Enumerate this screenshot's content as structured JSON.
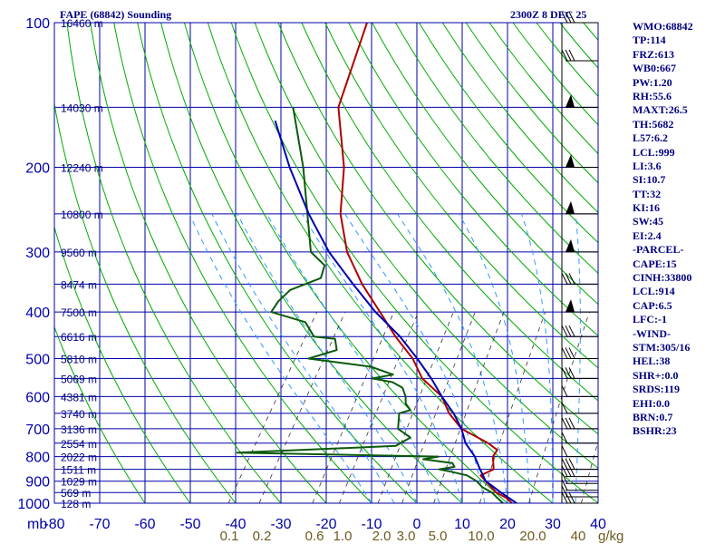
{
  "header": {
    "title": "FAPE (68842) Sounding",
    "valid": "2300Z  8 DEC 25"
  },
  "chart_data": {
    "type": "line",
    "title": "FAPE (68842) Sounding",
    "diagram": "Skew-T log-P",
    "pressure_label": "mb",
    "mixing_ratio_label": "g/kg",
    "pressure_range": [
      100,
      1000
    ],
    "temperature_range": [
      -80,
      40
    ],
    "pressure_ticks": [
      "100",
      "200",
      "300",
      "400",
      "500",
      "600",
      "700",
      "800",
      "900",
      "1000"
    ],
    "temperature_ticks": [
      "-80",
      "-70",
      "-60",
      "-50",
      "-40",
      "-30",
      "-20",
      "-10",
      "0",
      "10",
      "20",
      "30",
      "40"
    ],
    "mixing_ratio_ticks": [
      "0.1",
      "0.2",
      "0.6",
      "1.0",
      "2.0",
      "3.0",
      "5.0",
      "10.0",
      "20.0",
      "40"
    ],
    "height_labels": [
      {
        "p": 100,
        "text": "16460 m"
      },
      {
        "p": 150,
        "text": "14030 m"
      },
      {
        "p": 200,
        "text": "12240 m"
      },
      {
        "p": 250,
        "text": "10800 m"
      },
      {
        "p": 300,
        "text": "9560 m"
      },
      {
        "p": 350,
        "text": "8474 m"
      },
      {
        "p": 400,
        "text": "7500 m"
      },
      {
        "p": 450,
        "text": "6616 m"
      },
      {
        "p": 500,
        "text": "5810 m"
      },
      {
        "p": 550,
        "text": "5069 m"
      },
      {
        "p": 600,
        "text": "4381 m"
      },
      {
        "p": 650,
        "text": "3740 m"
      },
      {
        "p": 700,
        "text": "3136 m"
      },
      {
        "p": 750,
        "text": "2554 m"
      },
      {
        "p": 800,
        "text": "2022 m"
      },
      {
        "p": 850,
        "text": "1511 m"
      },
      {
        "p": 900,
        "text": "1029 m"
      },
      {
        "p": 950,
        "text": "569 m"
      },
      {
        "p": 1000,
        "text": "128 m"
      }
    ],
    "series": [
      {
        "name": "Temperature",
        "color": "#b00000",
        "points": [
          [
            1000,
            21
          ],
          [
            975,
            19
          ],
          [
            950,
            16
          ],
          [
            925,
            14
          ],
          [
            900,
            12
          ],
          [
            875,
            10
          ],
          [
            850,
            12
          ],
          [
            800,
            10
          ],
          [
            775,
            10
          ],
          [
            750,
            7
          ],
          [
            700,
            -1
          ],
          [
            650,
            -6
          ],
          [
            600,
            -10
          ],
          [
            550,
            -17
          ],
          [
            500,
            -22
          ],
          [
            450,
            -29
          ],
          [
            400,
            -36
          ],
          [
            350,
            -44
          ],
          [
            300,
            -52
          ],
          [
            250,
            -59
          ],
          [
            200,
            -65
          ],
          [
            150,
            -75
          ],
          [
            100,
            -81
          ]
        ]
      },
      {
        "name": "Dewpoint",
        "color": "#0b5a0b",
        "points": [
          [
            1000,
            19
          ],
          [
            975,
            17
          ],
          [
            950,
            15
          ],
          [
            925,
            12
          ],
          [
            900,
            10
          ],
          [
            875,
            7
          ],
          [
            860,
            3
          ],
          [
            850,
            0
          ],
          [
            840,
            3
          ],
          [
            825,
            2
          ],
          [
            810,
            -5
          ],
          [
            800,
            -2
          ],
          [
            785,
            -47
          ],
          [
            760,
            -13
          ],
          [
            730,
            -11
          ],
          [
            700,
            -15
          ],
          [
            650,
            -17
          ],
          [
            640,
            -15
          ],
          [
            620,
            -17
          ],
          [
            600,
            -18
          ],
          [
            575,
            -20
          ],
          [
            560,
            -23
          ],
          [
            550,
            -28
          ],
          [
            540,
            -24
          ],
          [
            520,
            -30
          ],
          [
            500,
            -45
          ],
          [
            480,
            -40
          ],
          [
            455,
            -42
          ],
          [
            450,
            -47
          ],
          [
            420,
            -51
          ],
          [
            400,
            -60
          ],
          [
            380,
            -60
          ],
          [
            360,
            -59
          ],
          [
            340,
            -54
          ],
          [
            320,
            -55
          ],
          [
            300,
            -60
          ],
          [
            200,
            -74
          ],
          [
            150,
            -85
          ]
        ]
      },
      {
        "name": "Parcel",
        "color": "#0000b0",
        "points": [
          [
            1000,
            22
          ],
          [
            950,
            17
          ],
          [
            900,
            12
          ],
          [
            850,
            9
          ],
          [
            800,
            6
          ],
          [
            750,
            2
          ],
          [
            700,
            -1
          ],
          [
            650,
            -5
          ],
          [
            600,
            -10
          ],
          [
            550,
            -15
          ],
          [
            500,
            -21
          ],
          [
            450,
            -28
          ],
          [
            400,
            -37
          ],
          [
            350,
            -46
          ],
          [
            300,
            -56
          ],
          [
            250,
            -66
          ],
          [
            200,
            -77
          ],
          [
            160,
            -87
          ]
        ]
      }
    ],
    "wind_barbs": [
      {
        "p": 1000,
        "kind": "mid"
      },
      {
        "p": 970,
        "kind": "light"
      },
      {
        "p": 940,
        "kind": "light"
      },
      {
        "p": 910,
        "kind": "light"
      },
      {
        "p": 880,
        "kind": "mid"
      },
      {
        "p": 850,
        "kind": "mid"
      },
      {
        "p": 800,
        "kind": "light"
      },
      {
        "p": 750,
        "kind": "light"
      },
      {
        "p": 700,
        "kind": "mid"
      },
      {
        "p": 650,
        "kind": "light"
      },
      {
        "p": 600,
        "kind": "light"
      },
      {
        "p": 550,
        "kind": "mid"
      },
      {
        "p": 500,
        "kind": "mid"
      },
      {
        "p": 450,
        "kind": "mid"
      },
      {
        "p": 400,
        "kind": "flag"
      },
      {
        "p": 350,
        "kind": "mid"
      },
      {
        "p": 300,
        "kind": "flag"
      },
      {
        "p": 250,
        "kind": "flag"
      },
      {
        "p": 200,
        "kind": "flag"
      },
      {
        "p": 150,
        "kind": "flag"
      },
      {
        "p": 120,
        "kind": "mid"
      },
      {
        "p": 100,
        "kind": "mid"
      }
    ]
  },
  "indices": [
    "WMO:68842",
    "TP:114",
    "FRZ:613",
    "WB0:667",
    "PW:1.20",
    "RH:55.6",
    "MAXT:26.5",
    "TH:5682",
    "L57:6.2",
    "LCL:999",
    "LI:3.6",
    "SI:10.7",
    "TT:32",
    "KI:16",
    "SW:45",
    "EI:2.4",
    "-PARCEL-",
    "CAPE:15",
    "CINH:33800",
    "LCL:914",
    "CAP:6.5",
    "LFC:-1",
    "-WIND-",
    "STM:305/16",
    "HEL:38",
    "SHR+:0.0",
    "SRDS:119",
    "EHI:0.0",
    "BRN:0.7",
    "BSHR:23"
  ],
  "colors": {
    "grid": "#0000aa",
    "dry": "#00aa00",
    "moist": "#3399ff",
    "mix": "#333333",
    "temp": "#b00000",
    "dew": "#0b5a0b",
    "parcel": "#0000b0",
    "label": "#000080",
    "mixlabel": "#6b5a1e"
  }
}
